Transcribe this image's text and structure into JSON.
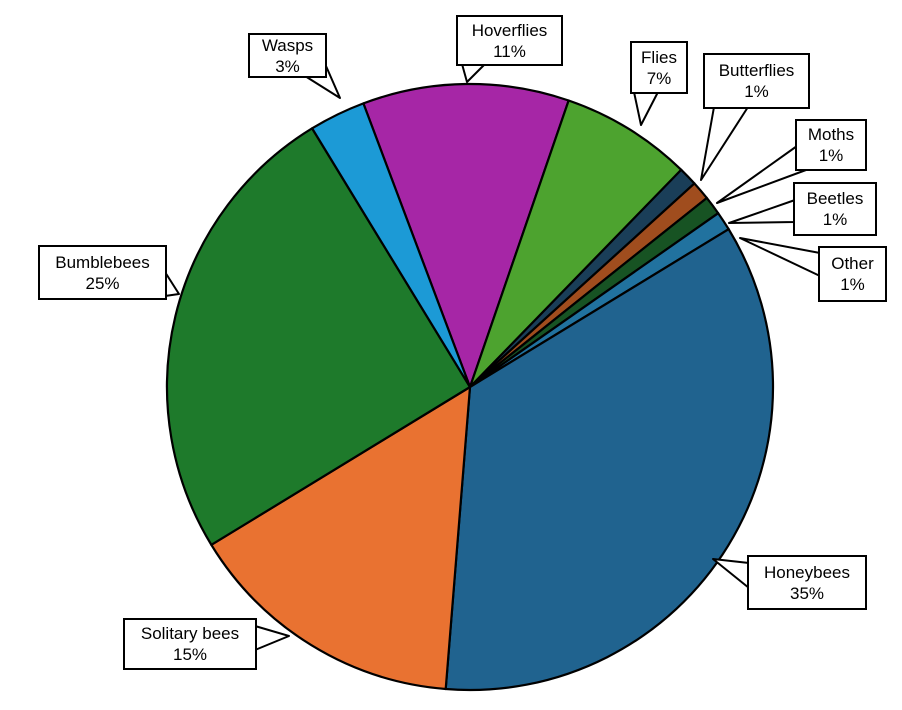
{
  "chart_data": {
    "type": "pie",
    "title": "",
    "direction": "clockwise",
    "start_angle_deg_from_top": -20.6,
    "outline_color": "#000000",
    "label_box_style": {
      "fill": "#FFFFFF",
      "border": "#000000",
      "text_color": "#000000"
    },
    "slices": [
      {
        "label": "Hoverflies",
        "value": 11,
        "pct_text": "11%",
        "color": "#A626A6"
      },
      {
        "label": "Flies",
        "value": 7,
        "pct_text": "7%",
        "color": "#4DA32F"
      },
      {
        "label": "Butterflies",
        "value": 1,
        "pct_text": "1%",
        "color": "#1A3E58"
      },
      {
        "label": "Moths",
        "value": 1,
        "pct_text": "1%",
        "color": "#A04D1E"
      },
      {
        "label": "Beetles",
        "value": 1,
        "pct_text": "1%",
        "color": "#175323"
      },
      {
        "label": "Other",
        "value": 1,
        "pct_text": "1%",
        "color": "#21729F"
      },
      {
        "label": "Honeybees",
        "value": 35,
        "pct_text": "35%",
        "color": "#20638F"
      },
      {
        "label": "Solitary bees",
        "value": 15,
        "pct_text": "15%",
        "color": "#E97231"
      },
      {
        "label": "Bumblebees",
        "value": 25,
        "pct_text": "25%",
        "color": "#1E7A2B"
      },
      {
        "label": "Wasps",
        "value": 3,
        "pct_text": "3%",
        "color": "#1C9AD6"
      }
    ]
  }
}
